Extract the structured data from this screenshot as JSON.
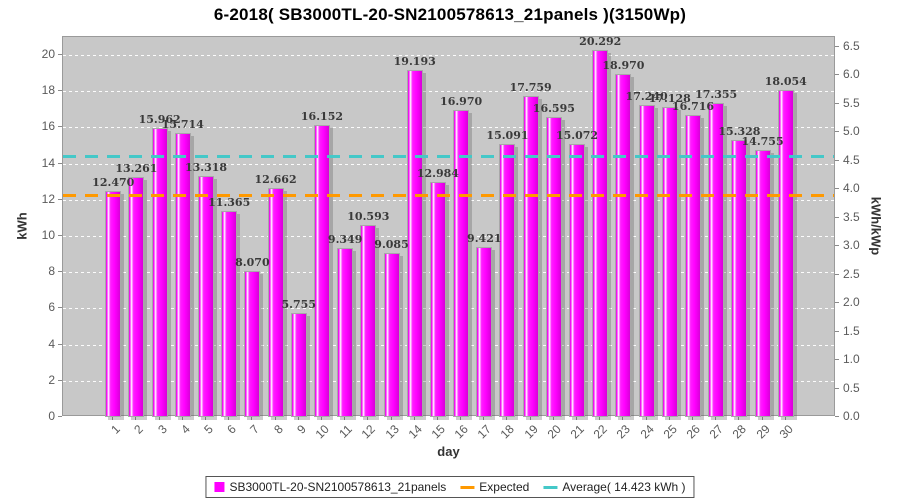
{
  "title": "6-2018( SB3000TL-20-SN2100578613_21panels )(3150Wp)",
  "chart_data": {
    "type": "bar",
    "title": "6-2018( SB3000TL-20-SN2100578613_21panels )(3150Wp)",
    "xlabel": "day",
    "ylabel_left": "kWh",
    "ylabel_right": "kWh/kWp",
    "categories": [
      "1",
      "2",
      "3",
      "4",
      "5",
      "6",
      "7",
      "8",
      "9",
      "10",
      "11",
      "12",
      "13",
      "14",
      "15",
      "16",
      "17",
      "18",
      "19",
      "20",
      "21",
      "22",
      "23",
      "24",
      "25",
      "26",
      "27",
      "28",
      "29",
      "30"
    ],
    "series": [
      {
        "name": "SB3000TL-20-SN2100578613_21panels",
        "color": "#FF00FF",
        "values": [
          12.47,
          13.261,
          15.962,
          15.714,
          13.318,
          11.365,
          8.07,
          12.662,
          5.755,
          16.152,
          9.349,
          10.593,
          9.085,
          19.193,
          12.984,
          16.97,
          9.421,
          15.091,
          17.759,
          16.595,
          15.072,
          20.292,
          18.97,
          17.24,
          17.128,
          16.716,
          17.355,
          15.328,
          14.755,
          18.054
        ]
      }
    ],
    "value_labels_shown": true,
    "reference_lines": [
      {
        "name": "Expected",
        "color": "#FF9900",
        "style": "dashed",
        "y_kwh": 12.25
      },
      {
        "name": "Average",
        "color": "#44C8C8",
        "style": "dashed",
        "y_kwh": 14.423
      }
    ],
    "axes": {
      "left": {
        "label": "kWh",
        "min": 0,
        "max": 21,
        "tick_step": 2
      },
      "right": {
        "label": "kWh/kWp",
        "min": 0.0,
        "max": 6.5,
        "tick_step": 0.5,
        "kwp_factor": 3.15
      },
      "x": {
        "label": "day",
        "tick_rotation_deg": -45
      }
    },
    "legend": {
      "position": "bottom-center",
      "entries": [
        {
          "label": "SB3000TL-20-SN2100578613_21panels",
          "swatch": "square",
          "color": "#FF00FF"
        },
        {
          "label": "Expected",
          "swatch": "line",
          "color": "#FF9900"
        },
        {
          "label": "Average( 14.423 kWh )",
          "swatch": "line",
          "color": "#44C8C8"
        }
      ]
    },
    "style": {
      "plot_background": "#C8C8C8",
      "grid": "horizontal-white-dashed",
      "bar_highlight": "white-left-stripe",
      "bar_shadow": true
    }
  }
}
